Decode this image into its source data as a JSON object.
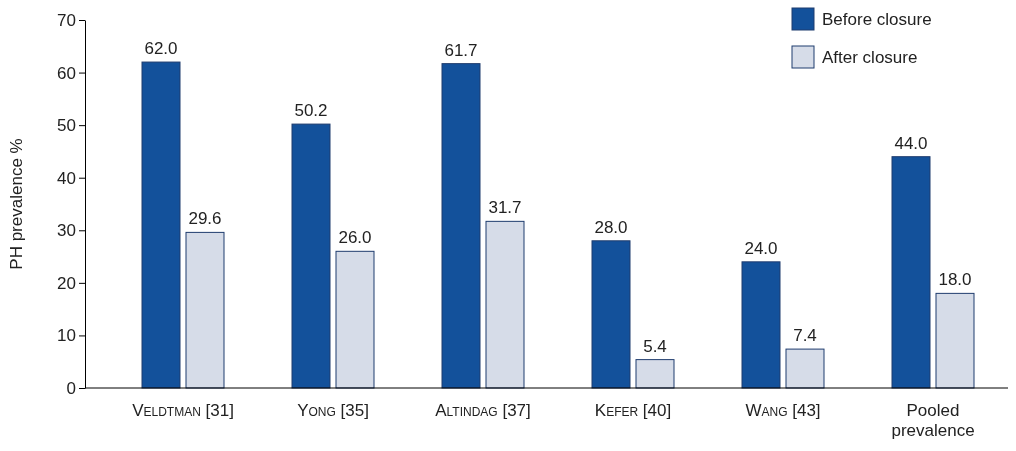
{
  "chart_data": {
    "type": "bar",
    "ylabel": "PH prevalence %",
    "categories": [
      "Veldtman [31]",
      "Yong [35]",
      "Altindag [37]",
      "Kefer [40]",
      "Wang [43]",
      "Pooled prevalence"
    ],
    "series": [
      {
        "name": "Before closure",
        "color": "#13519b",
        "values": [
          62.0,
          50.2,
          61.7,
          28.0,
          24.0,
          44.0
        ],
        "value_labels": [
          "62.0",
          "50.2",
          "61.7",
          "28.0",
          "24.0",
          "44.0"
        ]
      },
      {
        "name": "After closure",
        "color": "#d6dce8",
        "values": [
          29.6,
          26.0,
          31.7,
          5.4,
          7.4,
          18.0
        ],
        "value_labels": [
          "29.6",
          "26.0",
          "31.7",
          "5.4",
          "7.4",
          "18.0"
        ]
      }
    ],
    "ylim": [
      0,
      70
    ],
    "yticks": [
      0,
      10,
      20,
      30,
      40,
      50,
      60,
      70
    ],
    "legend": "top right",
    "grid": false
  }
}
